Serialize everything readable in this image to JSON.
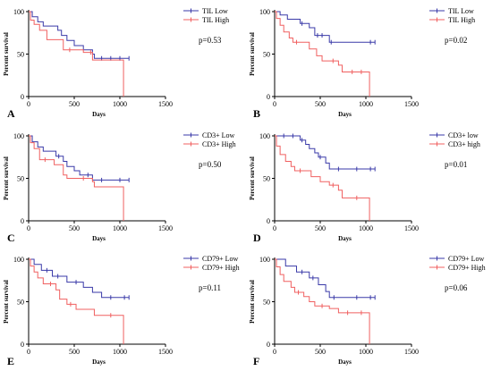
{
  "colors": {
    "low": "#3a3aa8",
    "high": "#f06060",
    "axis": "#000000"
  },
  "chart_data": [
    {
      "type": "line",
      "panel": "A",
      "xlabel": "Days",
      "ylabel": "Percent survival",
      "xlim": [
        0,
        1500
      ],
      "ylim": [
        0,
        100
      ],
      "xticks": [
        0,
        500,
        1000,
        1500
      ],
      "yticks": [
        0,
        50,
        100
      ],
      "pvalue": "p=0.53",
      "series": [
        {
          "name": "TIL Low",
          "role": "low",
          "steps": [
            [
              0,
              100
            ],
            [
              40,
              94
            ],
            [
              100,
              88
            ],
            [
              160,
              83
            ],
            [
              320,
              78
            ],
            [
              360,
              72
            ],
            [
              420,
              66
            ],
            [
              500,
              60
            ],
            [
              600,
              55
            ],
            [
              700,
              50
            ],
            [
              720,
              45
            ],
            [
              1100,
              45
            ]
          ],
          "censors": [
            [
              800,
              45
            ],
            [
              900,
              45
            ],
            [
              1000,
              45
            ],
            [
              1100,
              45
            ]
          ]
        },
        {
          "name": "TIL High",
          "role": "high",
          "steps": [
            [
              0,
              100
            ],
            [
              20,
              90
            ],
            [
              60,
              85
            ],
            [
              120,
              78
            ],
            [
              200,
              67
            ],
            [
              320,
              67
            ],
            [
              380,
              55
            ],
            [
              600,
              52
            ],
            [
              700,
              43
            ],
            [
              1040,
              43
            ],
            [
              1040,
              0
            ]
          ],
          "censors": [
            [
              450,
              55
            ],
            [
              680,
              52
            ]
          ]
        }
      ]
    },
    {
      "type": "line",
      "panel": "B",
      "xlabel": "Days",
      "ylabel": "Percent survival",
      "xlim": [
        0,
        1500
      ],
      "ylim": [
        0,
        100
      ],
      "xticks": [
        0,
        500,
        1000,
        1500
      ],
      "yticks": [
        0,
        50,
        100
      ],
      "pvalue": "p=0.02",
      "series": [
        {
          "name": "TIL Low",
          "role": "low",
          "steps": [
            [
              0,
              100
            ],
            [
              60,
              96
            ],
            [
              140,
              91
            ],
            [
              280,
              86
            ],
            [
              380,
              81
            ],
            [
              440,
              72
            ],
            [
              580,
              72
            ],
            [
              600,
              64
            ],
            [
              1100,
              64
            ]
          ],
          "censors": [
            [
              300,
              86
            ],
            [
              470,
              72
            ],
            [
              520,
              72
            ],
            [
              620,
              64
            ],
            [
              1050,
              64
            ],
            [
              1100,
              64
            ]
          ]
        },
        {
          "name": "TIL High",
          "role": "high",
          "steps": [
            [
              0,
              100
            ],
            [
              20,
              92
            ],
            [
              60,
              84
            ],
            [
              100,
              76
            ],
            [
              160,
              69
            ],
            [
              200,
              64
            ],
            [
              360,
              64
            ],
            [
              380,
              56
            ],
            [
              460,
              48
            ],
            [
              520,
              42
            ],
            [
              700,
              37
            ],
            [
              740,
              29
            ],
            [
              1020,
              29
            ],
            [
              1040,
              0
            ]
          ],
          "censors": [
            [
              240,
              64
            ],
            [
              640,
              42
            ],
            [
              850,
              29
            ],
            [
              950,
              29
            ]
          ]
        }
      ]
    },
    {
      "type": "line",
      "panel": "C",
      "xlabel": "Days",
      "ylabel": "Percent survival",
      "xlim": [
        0,
        1500
      ],
      "ylim": [
        0,
        100
      ],
      "xticks": [
        0,
        500,
        1000,
        1500
      ],
      "yticks": [
        0,
        50,
        100
      ],
      "pvalue": "p=0.50",
      "series": [
        {
          "name": "CD3+ Low",
          "role": "low",
          "steps": [
            [
              0,
              100
            ],
            [
              40,
              93
            ],
            [
              100,
              87
            ],
            [
              160,
              82
            ],
            [
              300,
              76
            ],
            [
              380,
              70
            ],
            [
              420,
              64
            ],
            [
              500,
              59
            ],
            [
              560,
              54
            ],
            [
              700,
              48
            ],
            [
              1100,
              48
            ]
          ],
          "censors": [
            [
              330,
              76
            ],
            [
              650,
              54
            ],
            [
              800,
              48
            ],
            [
              1000,
              48
            ],
            [
              1100,
              48
            ]
          ]
        },
        {
          "name": "CD3+ High",
          "role": "high",
          "steps": [
            [
              0,
              100
            ],
            [
              20,
              92
            ],
            [
              60,
              85
            ],
            [
              120,
              72
            ],
            [
              280,
              66
            ],
            [
              380,
              54
            ],
            [
              420,
              50
            ],
            [
              700,
              46
            ],
            [
              720,
              40
            ],
            [
              1040,
              40
            ],
            [
              1040,
              0
            ]
          ],
          "censors": [
            [
              180,
              72
            ],
            [
              600,
              50
            ]
          ]
        }
      ]
    },
    {
      "type": "line",
      "panel": "D",
      "xlabel": "Days",
      "ylabel": "Percent survival",
      "xlim": [
        0,
        1500
      ],
      "ylim": [
        0,
        100
      ],
      "xticks": [
        0,
        500,
        1000,
        1500
      ],
      "yticks": [
        0,
        50,
        100
      ],
      "pvalue": "p=0.01",
      "series": [
        {
          "name": "CD3+  low",
          "role": "low",
          "steps": [
            [
              0,
              100
            ],
            [
              280,
              95
            ],
            [
              340,
              90
            ],
            [
              380,
              85
            ],
            [
              440,
              80
            ],
            [
              480,
              75
            ],
            [
              560,
              68
            ],
            [
              600,
              61
            ],
            [
              1100,
              61
            ]
          ],
          "censors": [
            [
              100,
              100
            ],
            [
              200,
              100
            ],
            [
              300,
              95
            ],
            [
              500,
              75
            ],
            [
              700,
              61
            ],
            [
              900,
              61
            ],
            [
              1050,
              61
            ],
            [
              1100,
              61
            ]
          ]
        },
        {
          "name": "CD3+  high",
          "role": "high",
          "steps": [
            [
              0,
              100
            ],
            [
              20,
              88
            ],
            [
              60,
              78
            ],
            [
              120,
              70
            ],
            [
              180,
              64
            ],
            [
              220,
              59
            ],
            [
              340,
              59
            ],
            [
              400,
              52
            ],
            [
              500,
              46
            ],
            [
              600,
              42
            ],
            [
              700,
              36
            ],
            [
              740,
              27
            ],
            [
              1020,
              27
            ],
            [
              1040,
              0
            ]
          ],
          "censors": [
            [
              280,
              59
            ],
            [
              640,
              42
            ],
            [
              900,
              27
            ]
          ]
        }
      ]
    },
    {
      "type": "line",
      "panel": "E",
      "xlabel": "Days",
      "ylabel": "Percent survival",
      "xlim": [
        0,
        1500
      ],
      "ylim": [
        0,
        100
      ],
      "xticks": [
        0,
        500,
        1000,
        1500
      ],
      "yticks": [
        0,
        50,
        100
      ],
      "pvalue": "p=0.11",
      "series": [
        {
          "name": "CD79+ Low",
          "role": "low",
          "steps": [
            [
              0,
              100
            ],
            [
              60,
              94
            ],
            [
              140,
              87
            ],
            [
              260,
              80
            ],
            [
              420,
              73
            ],
            [
              600,
              67
            ],
            [
              700,
              61
            ],
            [
              800,
              55
            ],
            [
              1100,
              55
            ]
          ],
          "censors": [
            [
              200,
              87
            ],
            [
              320,
              80
            ],
            [
              520,
              73
            ],
            [
              900,
              55
            ],
            [
              1050,
              55
            ],
            [
              1100,
              55
            ]
          ]
        },
        {
          "name": "CD79+ High",
          "role": "high",
          "steps": [
            [
              0,
              100
            ],
            [
              20,
              92
            ],
            [
              60,
              85
            ],
            [
              100,
              78
            ],
            [
              160,
              71
            ],
            [
              300,
              64
            ],
            [
              340,
              53
            ],
            [
              420,
              47
            ],
            [
              520,
              41
            ],
            [
              720,
              34
            ],
            [
              1040,
              34
            ],
            [
              1040,
              0
            ]
          ],
          "censors": [
            [
              240,
              71
            ],
            [
              460,
              47
            ],
            [
              900,
              34
            ]
          ]
        }
      ]
    },
    {
      "type": "line",
      "panel": "F",
      "xlabel": "Days",
      "ylabel": "Percent survival",
      "xlim": [
        0,
        1500
      ],
      "ylim": [
        0,
        100
      ],
      "xticks": [
        0,
        500,
        1000,
        1500
      ],
      "yticks": [
        0,
        50,
        100
      ],
      "pvalue": "p=0.06",
      "series": [
        {
          "name": "CD79+ Low",
          "role": "low",
          "steps": [
            [
              0,
              100
            ],
            [
              120,
              92
            ],
            [
              240,
              85
            ],
            [
              380,
              78
            ],
            [
              480,
              70
            ],
            [
              560,
              62
            ],
            [
              600,
              55
            ],
            [
              1100,
              55
            ]
          ],
          "censors": [
            [
              300,
              85
            ],
            [
              420,
              78
            ],
            [
              650,
              55
            ],
            [
              900,
              55
            ],
            [
              1050,
              55
            ],
            [
              1100,
              55
            ]
          ]
        },
        {
          "name": "CD79+ High",
          "role": "high",
          "steps": [
            [
              0,
              100
            ],
            [
              20,
              91
            ],
            [
              60,
              82
            ],
            [
              100,
              74
            ],
            [
              180,
              67
            ],
            [
              220,
              61
            ],
            [
              320,
              56
            ],
            [
              380,
              50
            ],
            [
              440,
              45
            ],
            [
              600,
              42
            ],
            [
              700,
              37
            ],
            [
              1020,
              37
            ],
            [
              1040,
              0
            ]
          ],
          "censors": [
            [
              260,
              61
            ],
            [
              520,
              45
            ],
            [
              800,
              37
            ],
            [
              950,
              37
            ]
          ]
        }
      ]
    }
  ]
}
